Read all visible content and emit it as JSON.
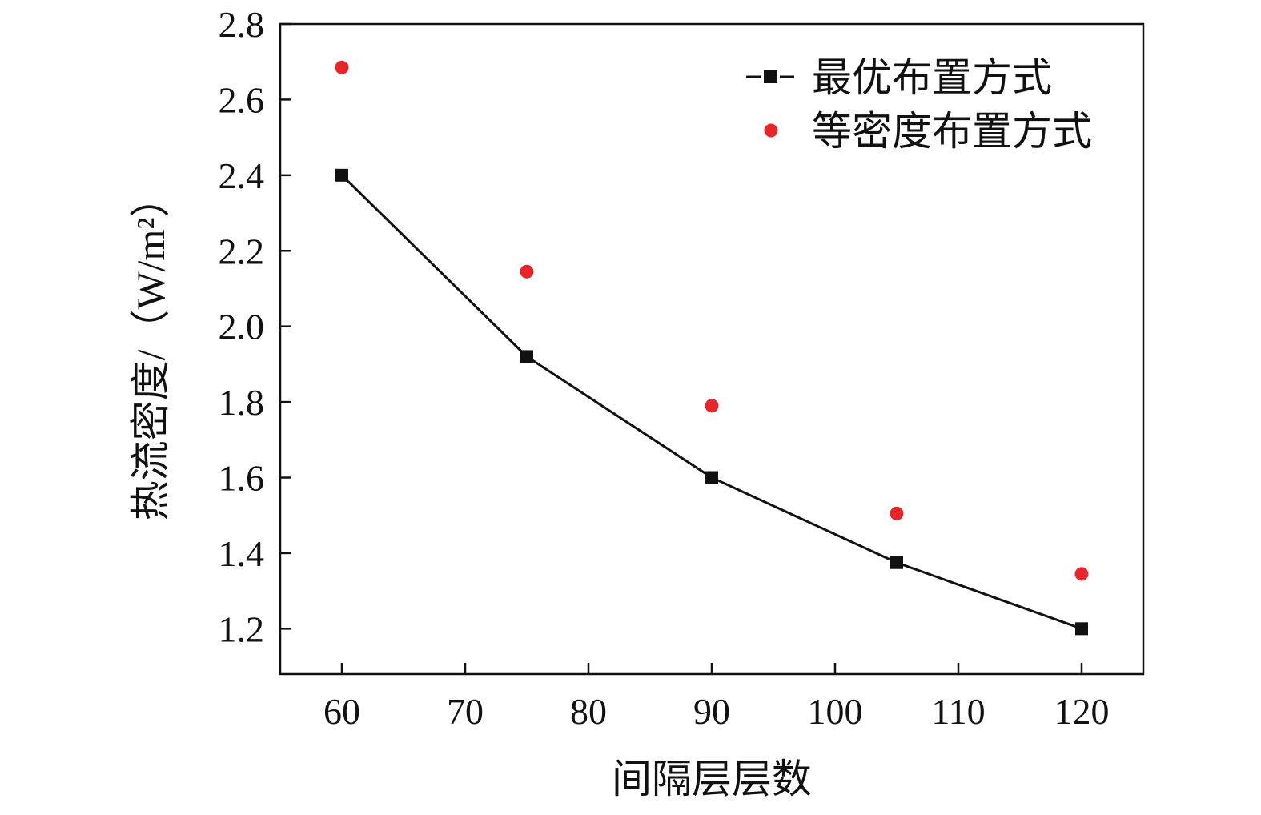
{
  "chart_data": {
    "type": "scatter",
    "xlabel": "间隔层层数",
    "ylabel": "热流密度/（W/m²）",
    "xlim": [
      55,
      125
    ],
    "ylim": [
      1.08,
      2.8
    ],
    "x_ticks": [
      60,
      70,
      80,
      90,
      100,
      110,
      120
    ],
    "x_tick_labels": [
      "60",
      "70",
      "80",
      "90",
      "100",
      "110",
      "120"
    ],
    "y_ticks": [
      1.2,
      1.4,
      1.6,
      1.8,
      2.0,
      2.2,
      2.4,
      2.6,
      2.8
    ],
    "y_tick_labels": [
      "1.2",
      "1.4",
      "1.6",
      "1.8",
      "2.0",
      "2.2",
      "2.4",
      "2.6",
      "2.8"
    ],
    "grid": false,
    "legend_position": "top-right",
    "series": [
      {
        "name": "最优布置方式",
        "style": "line+square-markers",
        "color": "#111111",
        "x": [
          60,
          75,
          90,
          105,
          120
        ],
        "y": [
          2.4,
          1.92,
          1.6,
          1.375,
          1.2
        ]
      },
      {
        "name": "等密度布置方式",
        "style": "circle-markers",
        "color": "#e8252a",
        "x": [
          60,
          75,
          90,
          105,
          120
        ],
        "y": [
          2.685,
          2.145,
          1.79,
          1.505,
          1.345
        ]
      }
    ]
  }
}
